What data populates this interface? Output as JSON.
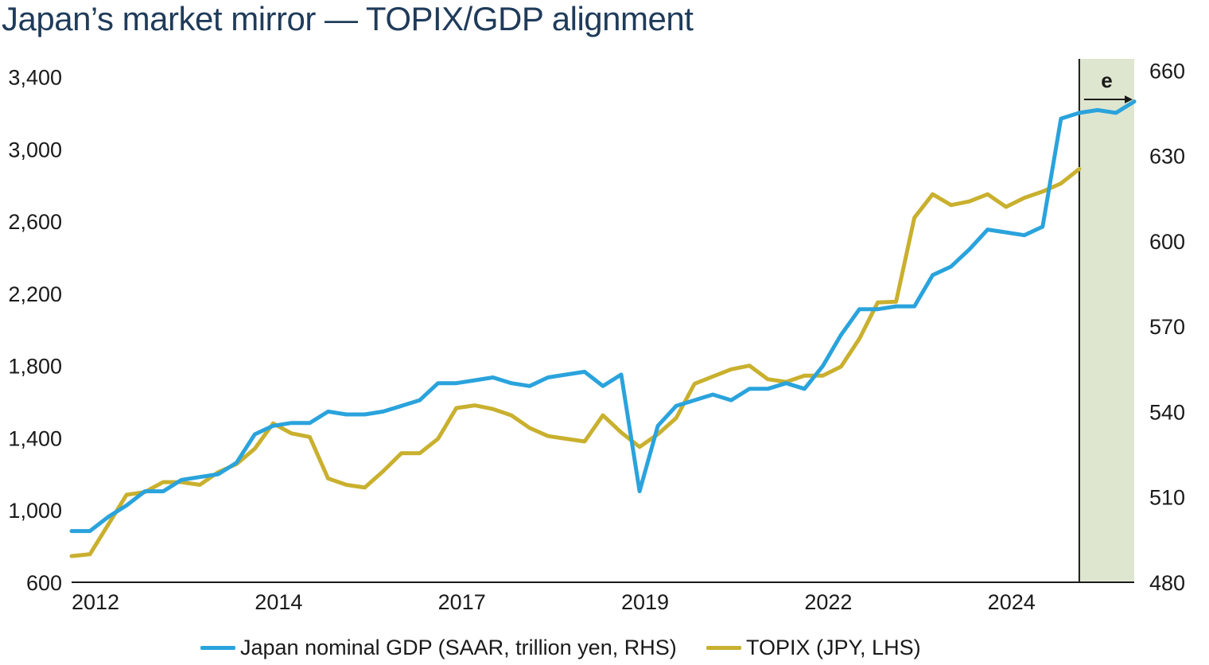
{
  "title": "Japan’s market mirror — TOPIX/GDP alignment",
  "colors": {
    "gdp": "#2aa3dc",
    "topix": "#c9b02e",
    "forecast_band": "#dfe6d0",
    "axis": "#1a1a1a"
  },
  "legend": {
    "gdp_label": "Japan nominal GDP (SAAR, trillion yen, RHS)",
    "topix_label": "TOPIX (JPY, LHS)"
  },
  "chart_data": {
    "type": "line",
    "x_tick_labels": [
      "2012",
      "2014",
      "2017",
      "2019",
      "2022",
      "2024"
    ],
    "x_tick_positions": [
      0,
      10,
      20,
      30,
      40,
      50
    ],
    "forecast_start": 55,
    "forecast_label": "e",
    "left_axis": {
      "ylim": [
        600,
        3500
      ],
      "ticks": [
        600,
        1000,
        1400,
        1800,
        2200,
        2600,
        3000,
        3400
      ],
      "tick_labels": [
        "600",
        "1,000",
        "1,400",
        "1,800",
        "2,200",
        "2,600",
        "3,000",
        "3,400"
      ]
    },
    "right_axis": {
      "ylim": [
        480,
        664
      ],
      "ticks": [
        480,
        510,
        540,
        570,
        600,
        630,
        660
      ],
      "tick_labels": [
        "480",
        "510",
        "540",
        "570",
        "600",
        "630",
        "660"
      ]
    },
    "series": [
      {
        "name": "TOPIX (JPY, LHS)",
        "axis": "left",
        "x": [
          0,
          1,
          2,
          3,
          4,
          5,
          6,
          7,
          8,
          9,
          10,
          11,
          12,
          13,
          14,
          15,
          16,
          17,
          18,
          19,
          20,
          21,
          22,
          23,
          24,
          25,
          26,
          27,
          28,
          29,
          30,
          31,
          32,
          33,
          34,
          35,
          36,
          37,
          38,
          39,
          40,
          41,
          42,
          43,
          44,
          45,
          46,
          47,
          48,
          49,
          50,
          51,
          52,
          53,
          54,
          55
        ],
        "values": [
          745,
          755,
          920,
          1085,
          1100,
          1155,
          1155,
          1140,
          1210,
          1255,
          1340,
          1480,
          1425,
          1405,
          1175,
          1140,
          1125,
          1215,
          1315,
          1315,
          1395,
          1565,
          1580,
          1560,
          1525,
          1455,
          1410,
          1395,
          1380,
          1525,
          1430,
          1350,
          1420,
          1510,
          1700,
          1740,
          1780,
          1800,
          1725,
          1710,
          1745,
          1745,
          1795,
          1950,
          2150,
          2155,
          2620,
          2750,
          2690,
          2710,
          2750,
          2680,
          2730,
          2765,
          2810,
          2890
        ]
      },
      {
        "name": "Japan nominal GDP (SAAR, trillion yen, RHS)",
        "axis": "right",
        "x": [
          0,
          1,
          2,
          3,
          4,
          5,
          6,
          7,
          8,
          9,
          10,
          11,
          12,
          13,
          14,
          15,
          16,
          17,
          18,
          19,
          20,
          21,
          22,
          23,
          24,
          25,
          26,
          27,
          28,
          29,
          30,
          31,
          32,
          33,
          34,
          35,
          36,
          37,
          38,
          39,
          40,
          41,
          42,
          43,
          44,
          45,
          46,
          47,
          48,
          49,
          50,
          51,
          52,
          53,
          54,
          55,
          56,
          57,
          58
        ],
        "values": [
          498,
          498,
          503,
          507,
          512,
          512,
          516,
          517,
          518,
          522,
          532,
          535,
          536,
          536,
          540,
          539,
          539,
          540,
          542,
          544,
          550,
          550,
          551,
          552,
          550,
          549,
          552,
          553,
          554,
          549,
          553,
          512,
          535,
          542,
          544,
          546,
          544,
          548,
          548,
          550,
          548,
          556,
          567,
          576,
          576,
          577,
          577,
          588,
          591,
          597,
          604,
          603,
          602,
          605,
          643,
          645,
          646,
          645,
          649
        ]
      }
    ]
  }
}
